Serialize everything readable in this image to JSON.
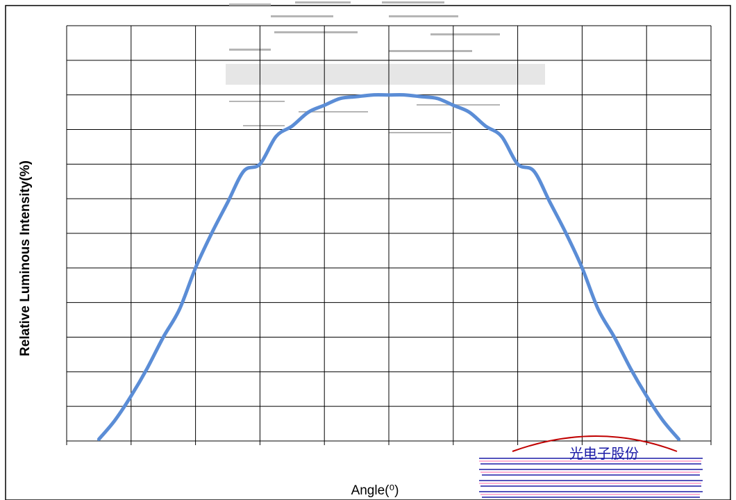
{
  "chart_data": {
    "type": "line",
    "title": "",
    "xlabel": "Angle(⁰)",
    "ylabel": "Relative Luminous Intensity(%)",
    "xlim": [
      -100,
      100
    ],
    "ylim": [
      0,
      120
    ],
    "x_tick_count": 11,
    "y_gridlines": 12,
    "grid": true,
    "series": [
      {
        "color": "#5b8dd6",
        "x": [
          -90,
          -85,
          -80,
          -75,
          -70,
          -65,
          -60,
          -55,
          -50,
          -45,
          -40,
          -35,
          -30,
          -25,
          -20,
          -15,
          -10,
          -5,
          0,
          5,
          10,
          15,
          20,
          25,
          30,
          35,
          40,
          45,
          50,
          55,
          60,
          65,
          70,
          75,
          80,
          85,
          90
        ],
        "y": [
          0.5,
          6,
          13,
          21,
          30,
          38,
          50,
          60,
          69,
          78,
          80,
          88,
          91,
          95,
          97,
          99,
          99.5,
          100,
          100,
          100,
          99.5,
          99,
          97,
          95,
          91,
          88,
          80,
          78,
          69,
          60,
          50,
          38,
          30,
          21,
          13,
          6,
          0.5
        ]
      }
    ]
  },
  "stamp": {
    "text": "光电子股份",
    "color": "#1a1aa6"
  }
}
